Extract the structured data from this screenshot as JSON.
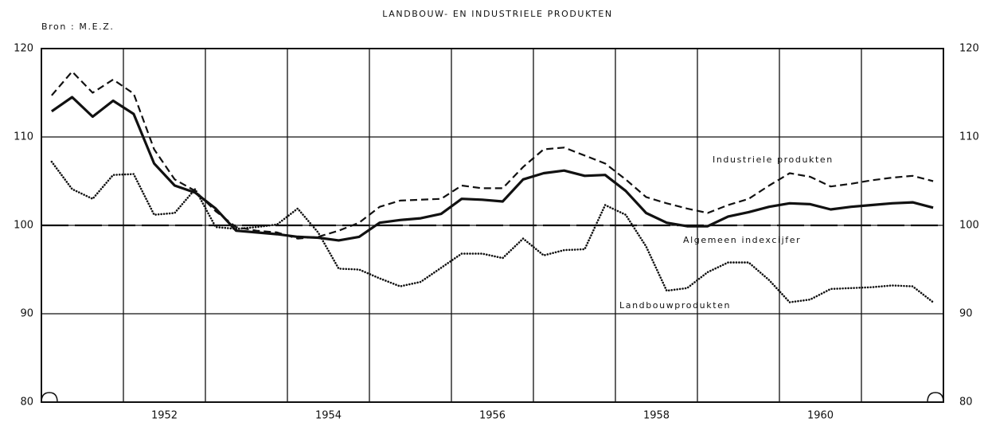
{
  "chart_data": {
    "type": "line",
    "title": "LANDBOUW- EN INDUSTRIELE PRODUKTEN",
    "source": "Bron : M.E.Z.",
    "x": [
      1951.125,
      1951.375,
      1951.625,
      1951.875,
      1952.125,
      1952.375,
      1952.625,
      1952.875,
      1953.125,
      1953.375,
      1953.625,
      1953.875,
      1954.125,
      1954.375,
      1954.625,
      1954.875,
      1955.125,
      1955.375,
      1955.625,
      1955.875,
      1956.125,
      1956.375,
      1956.625,
      1956.875,
      1957.125,
      1957.375,
      1957.625,
      1957.875,
      1958.125,
      1958.375,
      1958.625,
      1958.875,
      1959.125,
      1959.375,
      1959.625,
      1959.875,
      1960.125,
      1960.375,
      1960.625,
      1960.875,
      1961.125,
      1961.375,
      1961.625,
      1961.875
    ],
    "series": [
      {
        "name": "Industriele produkten",
        "color": "#111111",
        "style": "dashed",
        "values": [
          114.7,
          117.4,
          115.0,
          116.5,
          114.9,
          108.6,
          105.2,
          103.9,
          101.6,
          99.8,
          99.4,
          99.2,
          98.5,
          98.7,
          99.4,
          100.3,
          102.1,
          102.8,
          102.9,
          103.0,
          104.5,
          104.2,
          104.2,
          106.6,
          108.6,
          108.8,
          107.9,
          107.0,
          105.2,
          103.2,
          102.5,
          101.9,
          101.4,
          102.3,
          103.0,
          104.5,
          105.9,
          105.5,
          104.4,
          104.7,
          105.1,
          105.4,
          105.6,
          105.0
        ]
      },
      {
        "name": "Algemeen indexcijfer",
        "color": "#111111",
        "style": "solid",
        "values": [
          112.9,
          114.5,
          112.3,
          114.1,
          112.6,
          107.0,
          104.5,
          103.7,
          101.9,
          99.4,
          99.2,
          99.0,
          98.7,
          98.6,
          98.3,
          98.7,
          100.3,
          100.6,
          100.8,
          101.3,
          103.0,
          102.9,
          102.7,
          105.2,
          105.9,
          106.2,
          105.6,
          105.7,
          103.9,
          101.4,
          100.3,
          99.9,
          99.9,
          101.0,
          101.5,
          102.1,
          102.5,
          102.4,
          101.8,
          102.1,
          102.3,
          102.5,
          102.6,
          102.0
        ]
      },
      {
        "name": "Landbouwprodukten",
        "color": "#111111",
        "style": "dotted",
        "values": [
          107.2,
          104.1,
          103.0,
          105.7,
          105.8,
          101.2,
          101.4,
          104.1,
          99.8,
          99.6,
          99.8,
          100.1,
          101.9,
          99.2,
          95.1,
          95.0,
          94.0,
          93.1,
          93.6,
          95.2,
          96.8,
          96.8,
          96.3,
          98.5,
          96.6,
          97.2,
          97.3,
          102.3,
          101.2,
          97.6,
          92.6,
          92.9,
          94.7,
          95.8,
          95.8,
          93.8,
          91.3,
          91.6,
          92.8,
          92.9,
          93.0,
          93.2,
          93.1,
          91.3
        ]
      }
    ],
    "baseline": 100,
    "xlim": [
      1951,
      1962
    ],
    "xticks": [
      1952,
      1954,
      1956,
      1958,
      1960
    ],
    "x_gridlines": [
      1952,
      1953,
      1954,
      1955,
      1956,
      1957,
      1958,
      1959,
      1960,
      1961
    ],
    "ylim": [
      80,
      120
    ],
    "yticks": [
      80,
      90,
      100,
      110,
      120
    ],
    "y2lim": [
      80,
      120
    ],
    "y2ticks": [
      80,
      90,
      100,
      110,
      120
    ],
    "grid": true
  }
}
